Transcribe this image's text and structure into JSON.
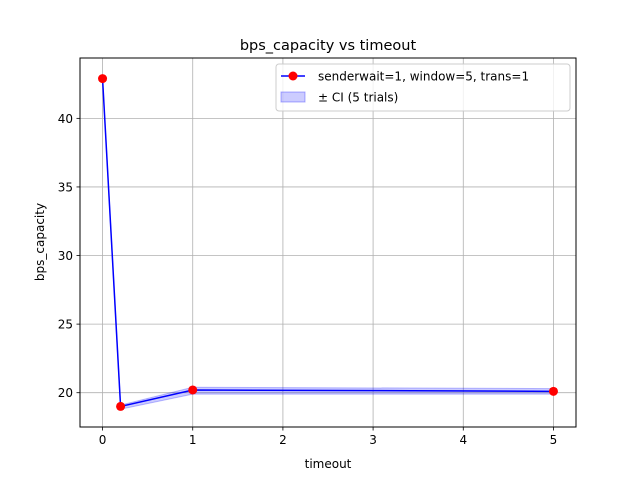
{
  "chart_data": {
    "type": "line",
    "title": "bps_capacity vs timeout",
    "xlabel": "timeout",
    "ylabel": "bps_capacity",
    "xlim": [
      -0.25,
      5.25
    ],
    "ylim": [
      17.5,
      44.4
    ],
    "xticks": [
      0,
      1,
      2,
      3,
      4,
      5
    ],
    "yticks": [
      20,
      25,
      30,
      35,
      40
    ],
    "grid": true,
    "legend_position": "top-right",
    "series": [
      {
        "name": "senderwait=1, window=5, trans=1",
        "line_color": "#0000ff",
        "marker_color": "#ff0000",
        "x": [
          0.0,
          0.2,
          1.0,
          5.0
        ],
        "y": [
          42.9,
          19.0,
          20.2,
          20.1
        ],
        "ci_lower": [
          42.9,
          18.8,
          19.9,
          19.9
        ],
        "ci_upper": [
          42.9,
          19.1,
          20.4,
          20.3
        ]
      }
    ],
    "ci_band": {
      "name": "± CI (5 trials)",
      "color": "#0000ff"
    }
  }
}
